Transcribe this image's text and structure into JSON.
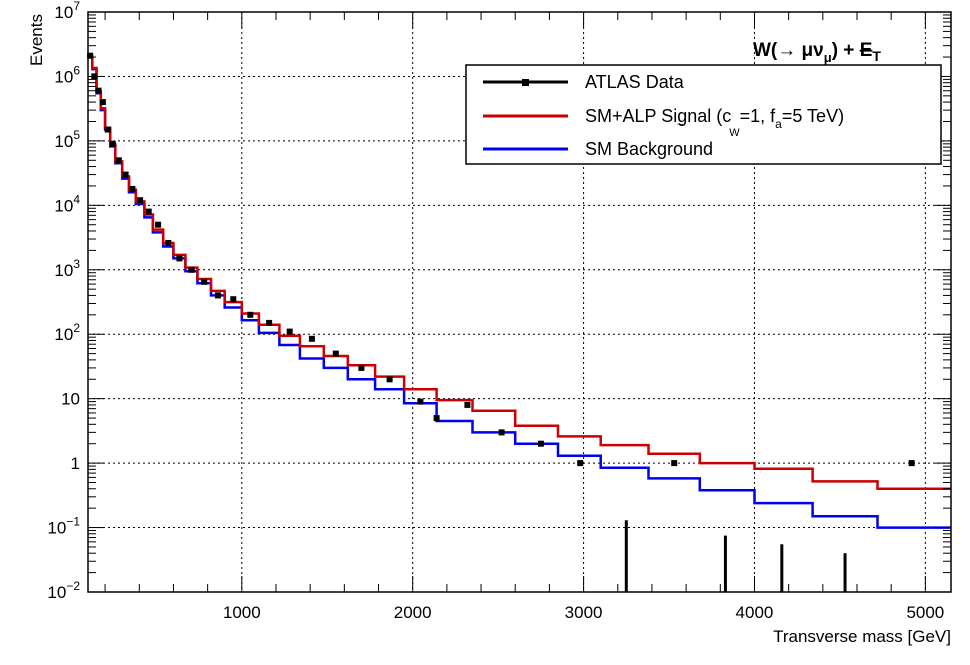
{
  "chart_data": {
    "type": "line",
    "title": "",
    "annotation": "W(→ μνμ) + E̸T",
    "xlabel": "Transverse mass [GeV]",
    "ylabel": "Events",
    "xlim": [
      100,
      5150
    ],
    "ylim": [
      0.01,
      10000000
    ],
    "yscale": "log",
    "grid": true,
    "legend_position": "top-right",
    "x_ticks": [
      {
        "value": 1000,
        "label": "1000"
      },
      {
        "value": 2000,
        "label": "2000"
      },
      {
        "value": 3000,
        "label": "3000"
      },
      {
        "value": 4000,
        "label": "4000"
      },
      {
        "value": 5000,
        "label": "5000"
      }
    ],
    "y_ticks": [
      {
        "value": 0.01,
        "base": "10",
        "exp": "−2"
      },
      {
        "value": 0.1,
        "base": "10",
        "exp": "−1"
      },
      {
        "value": 1,
        "base": "1",
        "exp": ""
      },
      {
        "value": 10,
        "base": "10",
        "exp": ""
      },
      {
        "value": 100,
        "base": "10",
        "exp": "2"
      },
      {
        "value": 1000,
        "base": "10",
        "exp": "3"
      },
      {
        "value": 10000,
        "base": "10",
        "exp": "4"
      },
      {
        "value": 100000,
        "base": "10",
        "exp": "5"
      },
      {
        "value": 1000000,
        "base": "10",
        "exp": "6"
      },
      {
        "value": 10000000,
        "base": "10",
        "exp": "7"
      }
    ],
    "legend": [
      {
        "name": "ATLAS Data",
        "color": "#000000",
        "style": "marker-line"
      },
      {
        "name": "SM+ALP Signal",
        "color": "#cc0000",
        "style": "line"
      },
      {
        "name": "SM Background",
        "color": "#0000ee",
        "style": "line"
      }
    ],
    "signal_label_parts": {
      "pre": "SM+ALP Signal (c",
      "sub1_symbol": "~",
      "sub1": "W",
      "mid": "=1, f",
      "sub2": "a",
      "post": "=5 TeV)"
    },
    "bin_edges": [
      100,
      125,
      150,
      175,
      200,
      230,
      260,
      300,
      340,
      380,
      430,
      480,
      540,
      600,
      670,
      740,
      820,
      900,
      1000,
      1100,
      1220,
      1340,
      1480,
      1620,
      1780,
      1950,
      2140,
      2350,
      2600,
      2850,
      3100,
      3380,
      3680,
      4000,
      4340,
      4720,
      5150
    ],
    "series": [
      {
        "name": "SM Background",
        "color": "#0000ee",
        "values": [
          2000000,
          1300000,
          550000,
          300000,
          150000,
          82000,
          45000,
          26000,
          16000,
          10500,
          6500,
          3800,
          2300,
          1500,
          950,
          620,
          400,
          260,
          165,
          105,
          68,
          42,
          30,
          20,
          14,
          8.5,
          4.5,
          3.0,
          2.0,
          1.3,
          0.85,
          0.58,
          0.38,
          0.24,
          0.15,
          0.1
        ]
      },
      {
        "name": "SM+ALP Signal",
        "color": "#cc0000",
        "values": [
          2050000,
          1350000,
          580000,
          320000,
          160000,
          88000,
          48000,
          28000,
          17500,
          11500,
          7200,
          4200,
          2600,
          1700,
          1080,
          720,
          470,
          315,
          210,
          140,
          95,
          65,
          46,
          33,
          22,
          14,
          9.5,
          6.5,
          3.8,
          2.6,
          1.9,
          1.4,
          1.0,
          0.82,
          0.52,
          0.4
        ]
      }
    ],
    "data_points": {
      "name": "ATLAS Data",
      "x": [
        112,
        137,
        162,
        187,
        215,
        245,
        280,
        320,
        360,
        405,
        455,
        510,
        570,
        635,
        705,
        780,
        860,
        950,
        1050,
        1160,
        1280,
        1410,
        1550,
        1700,
        1865,
        2045,
        2140,
        2320,
        2520,
        2750,
        2980,
        3530,
        4920
      ],
      "y": [
        2100000,
        1000000,
        600000,
        400000,
        150000,
        90000,
        50000,
        30000,
        18000,
        12000,
        8000,
        5000,
        2600,
        1500,
        1000,
        650,
        400,
        350,
        200,
        150,
        110,
        85,
        50,
        30,
        20,
        9,
        5,
        8,
        3,
        2,
        1,
        1,
        1
      ]
    },
    "vertical_markers": {
      "x": [
        3250,
        3830,
        4160,
        4530
      ],
      "y": [
        0.13,
        0.075,
        0.055,
        0.04
      ]
    }
  }
}
